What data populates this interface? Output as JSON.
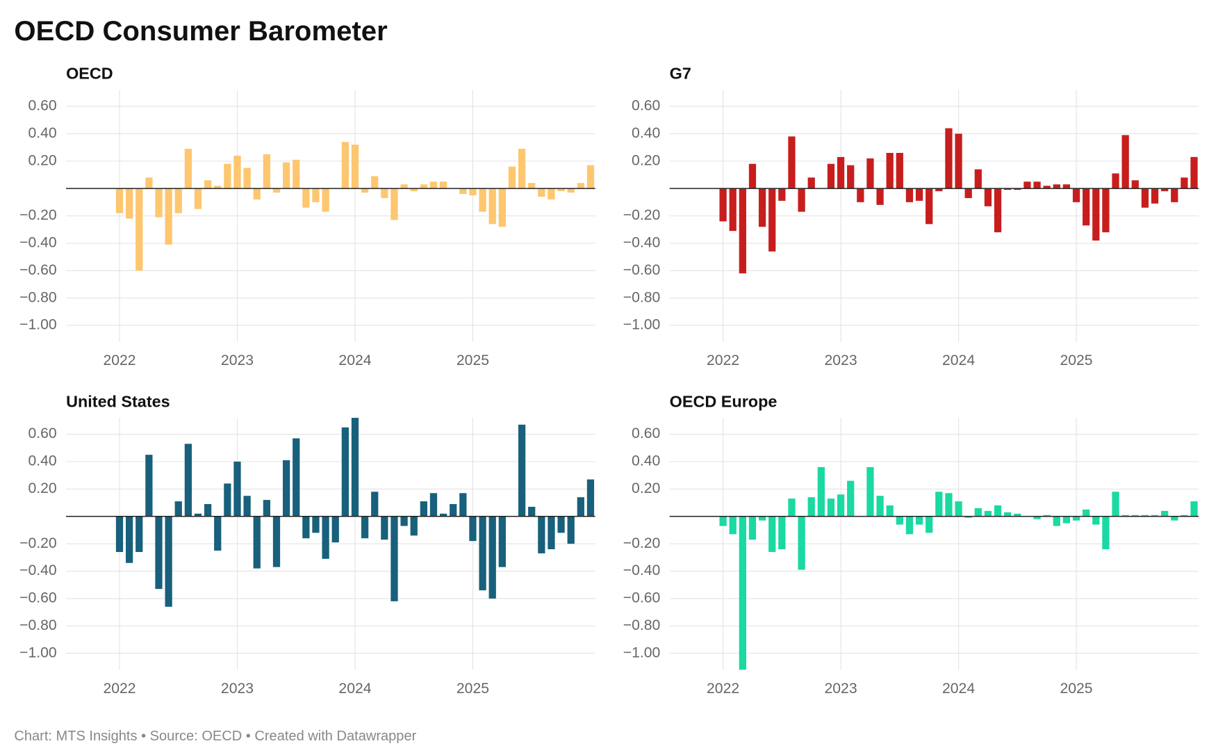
{
  "title": "OECD Consumer Barometer",
  "footer": "Chart: MTS Insights • Source: OECD • Created with Datawrapper",
  "chart_data": [
    {
      "type": "bar",
      "title": "OECD",
      "color": "#fec66f",
      "categories": [
        "2022",
        null,
        null,
        null,
        null,
        null,
        null,
        null,
        null,
        null,
        null,
        null,
        "2023",
        null,
        null,
        null,
        null,
        null,
        null,
        null,
        null,
        null,
        null,
        null,
        "2024",
        null,
        null,
        null,
        null,
        null,
        null,
        null,
        null,
        null,
        null,
        null,
        "2025",
        null,
        null,
        null,
        null,
        null,
        null,
        null,
        null,
        null,
        null,
        null,
        null
      ],
      "values": [
        -0.18,
        -0.22,
        -0.6,
        0.08,
        -0.21,
        -0.41,
        -0.18,
        0.29,
        -0.15,
        0.06,
        0.02,
        0.18,
        0.24,
        0.15,
        -0.08,
        0.25,
        -0.03,
        0.19,
        0.21,
        -0.14,
        -0.1,
        -0.17,
        0,
        0.34,
        0.32,
        -0.03,
        0.09,
        -0.07,
        -0.23,
        0.03,
        -0.02,
        0.03,
        0.05,
        0.05,
        0,
        -0.04,
        -0.05,
        -0.17,
        -0.26,
        -0.28,
        0.16,
        0.29,
        0.04,
        -0.06,
        -0.08,
        -0.02,
        -0.03,
        0.04,
        0.17
      ],
      "ylim": [
        -1.12,
        0.72
      ],
      "yticks": [
        {
          "value": 0.6,
          "label": "0.60"
        },
        {
          "value": 0.4,
          "label": "0.40"
        },
        {
          "value": 0.2,
          "label": "0.20"
        },
        {
          "value": -0.2,
          "label": "−0.20"
        },
        {
          "value": -0.4,
          "label": "−0.40"
        },
        {
          "value": -0.6,
          "label": "−0.60"
        },
        {
          "value": -0.8,
          "label": "−0.80"
        },
        {
          "value": -1.0,
          "label": "−1.00"
        }
      ],
      "grid": true
    },
    {
      "type": "bar",
      "title": "G7",
      "color": "#c71e1d",
      "categories": [
        "2022",
        null,
        null,
        null,
        null,
        null,
        null,
        null,
        null,
        null,
        null,
        null,
        "2023",
        null,
        null,
        null,
        null,
        null,
        null,
        null,
        null,
        null,
        null,
        null,
        "2024",
        null,
        null,
        null,
        null,
        null,
        null,
        null,
        null,
        null,
        null,
        null,
        "2025",
        null,
        null,
        null,
        null,
        null,
        null,
        null,
        null,
        null,
        null,
        null,
        null
      ],
      "values": [
        -0.24,
        -0.31,
        -0.62,
        0.18,
        -0.28,
        -0.46,
        -0.09,
        0.38,
        -0.17,
        0.08,
        0,
        0.18,
        0.23,
        0.17,
        -0.1,
        0.22,
        -0.12,
        0.26,
        0.26,
        -0.1,
        -0.09,
        -0.26,
        -0.02,
        0.44,
        0.4,
        -0.07,
        0.14,
        -0.13,
        -0.32,
        -0.01,
        -0.01,
        0.05,
        0.05,
        0.02,
        0.03,
        0.03,
        -0.1,
        -0.27,
        -0.38,
        -0.32,
        0.11,
        0.39,
        0.06,
        -0.14,
        -0.11,
        -0.02,
        -0.1,
        0.08,
        0.23
      ],
      "ylim": [
        -1.12,
        0.72
      ],
      "yticks": [
        {
          "value": 0.6,
          "label": "0.60"
        },
        {
          "value": 0.4,
          "label": "0.40"
        },
        {
          "value": 0.2,
          "label": "0.20"
        },
        {
          "value": -0.2,
          "label": "−0.20"
        },
        {
          "value": -0.4,
          "label": "−0.40"
        },
        {
          "value": -0.6,
          "label": "−0.60"
        },
        {
          "value": -0.8,
          "label": "−0.80"
        },
        {
          "value": -1.0,
          "label": "−1.00"
        }
      ],
      "grid": true
    },
    {
      "type": "bar",
      "title": "United States",
      "color": "#18607b",
      "categories": [
        "2022",
        null,
        null,
        null,
        null,
        null,
        null,
        null,
        null,
        null,
        null,
        null,
        "2023",
        null,
        null,
        null,
        null,
        null,
        null,
        null,
        null,
        null,
        null,
        null,
        "2024",
        null,
        null,
        null,
        null,
        null,
        null,
        null,
        null,
        null,
        null,
        null,
        "2025",
        null,
        null,
        null,
        null,
        null,
        null,
        null,
        null,
        null,
        null,
        null,
        null
      ],
      "values": [
        -0.26,
        -0.34,
        -0.26,
        0.45,
        -0.53,
        -0.66,
        0.11,
        0.53,
        0.02,
        0.09,
        -0.25,
        0.24,
        0.4,
        0.15,
        -0.38,
        0.12,
        -0.37,
        0.41,
        0.57,
        -0.16,
        -0.12,
        -0.31,
        -0.19,
        0.65,
        0.72,
        -0.16,
        0.18,
        -0.17,
        -0.62,
        -0.07,
        -0.14,
        0.11,
        0.17,
        0.02,
        0.09,
        0.17,
        -0.18,
        -0.54,
        -0.6,
        -0.37,
        0,
        0.67,
        0.07,
        -0.27,
        -0.24,
        -0.12,
        -0.2,
        0.14,
        0.27
      ],
      "ylim": [
        -1.12,
        0.72
      ],
      "yticks": [
        {
          "value": 0.6,
          "label": "0.60"
        },
        {
          "value": 0.4,
          "label": "0.40"
        },
        {
          "value": 0.2,
          "label": "0.20"
        },
        {
          "value": -0.2,
          "label": "−0.20"
        },
        {
          "value": -0.4,
          "label": "−0.40"
        },
        {
          "value": -0.6,
          "label": "−0.60"
        },
        {
          "value": -0.8,
          "label": "−0.80"
        },
        {
          "value": -1.0,
          "label": "−1.00"
        }
      ],
      "grid": true
    },
    {
      "type": "bar",
      "title": "OECD Europe",
      "color": "#1ad9a2",
      "categories": [
        "2022",
        null,
        null,
        null,
        null,
        null,
        null,
        null,
        null,
        null,
        null,
        null,
        "2023",
        null,
        null,
        null,
        null,
        null,
        null,
        null,
        null,
        null,
        null,
        null,
        "2024",
        null,
        null,
        null,
        null,
        null,
        null,
        null,
        null,
        null,
        null,
        null,
        "2025",
        null,
        null,
        null,
        null,
        null,
        null,
        null,
        null,
        null,
        null,
        null,
        null
      ],
      "values": [
        -0.07,
        -0.13,
        -1.12,
        -0.17,
        -0.03,
        -0.26,
        -0.24,
        0.13,
        -0.39,
        0.14,
        0.36,
        0.13,
        0.16,
        0.26,
        0,
        0.36,
        0.15,
        0.08,
        -0.06,
        -0.13,
        -0.06,
        -0.12,
        0.18,
        0.17,
        0.11,
        -0.01,
        0.06,
        0.04,
        0.08,
        0.03,
        0.02,
        0,
        -0.02,
        0.01,
        -0.07,
        -0.05,
        -0.03,
        0.05,
        -0.06,
        -0.24,
        0.18,
        0.01,
        0.01,
        0.01,
        0.01,
        0.04,
        -0.03,
        0.01,
        0.11
      ],
      "ylim": [
        -1.12,
        0.72
      ],
      "yticks": [
        {
          "value": 0.6,
          "label": "0.60"
        },
        {
          "value": 0.4,
          "label": "0.40"
        },
        {
          "value": 0.2,
          "label": "0.20"
        },
        {
          "value": -0.2,
          "label": "−0.20"
        },
        {
          "value": -0.4,
          "label": "−0.40"
        },
        {
          "value": -0.6,
          "label": "−0.60"
        },
        {
          "value": -0.8,
          "label": "−0.80"
        },
        {
          "value": -1.0,
          "label": "−1.00"
        }
      ],
      "grid": true
    }
  ]
}
